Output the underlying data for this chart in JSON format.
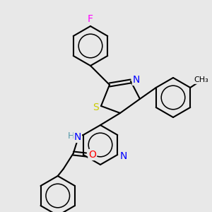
{
  "bg_color": "#e8e8e8",
  "bond_color": "#000000",
  "bond_width": 1.5,
  "atom_colors": {
    "F": "#ff00ff",
    "S": "#cccc00",
    "N": "#0000ff",
    "O": "#ff0000",
    "H": "#5599aa",
    "C": "#000000"
  },
  "figsize": [
    3.0,
    3.0
  ],
  "dpi": 100
}
